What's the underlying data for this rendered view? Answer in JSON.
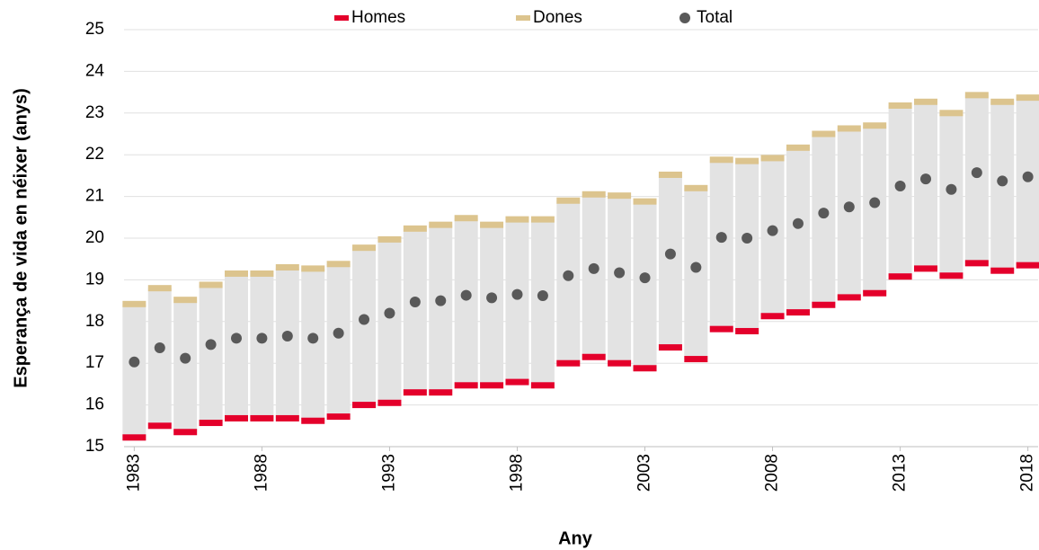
{
  "chart_data": {
    "type": "range",
    "x_label": "Any",
    "y_label": "Esperança de vida en néixer (anys)",
    "x": [
      1983,
      1984,
      1985,
      1986,
      1987,
      1988,
      1989,
      1990,
      1991,
      1992,
      1993,
      1994,
      1995,
      1996,
      1997,
      1998,
      1999,
      2000,
      2001,
      2002,
      2003,
      2004,
      2005,
      2006,
      2007,
      2008,
      2009,
      2010,
      2011,
      2012,
      2013,
      2014,
      2015,
      2016,
      2017,
      2018
    ],
    "series": [
      {
        "name": "Homes",
        "color": "#e4002b",
        "marker": "dash",
        "values": [
          15.22,
          15.5,
          15.35,
          15.57,
          15.68,
          15.68,
          15.68,
          15.62,
          15.72,
          16.0,
          16.05,
          16.3,
          16.3,
          16.47,
          16.47,
          16.55,
          16.47,
          17.0,
          17.15,
          17.0,
          16.88,
          17.38,
          17.1,
          17.82,
          17.77,
          18.13,
          18.22,
          18.4,
          18.58,
          18.68,
          19.08,
          19.27,
          19.1,
          19.4,
          19.22,
          19.35
        ]
      },
      {
        "name": "Dones",
        "color": "#dcc48e",
        "marker": "dash",
        "values": [
          18.42,
          18.8,
          18.52,
          18.88,
          19.15,
          19.15,
          19.3,
          19.27,
          19.38,
          19.77,
          19.97,
          20.23,
          20.32,
          20.48,
          20.32,
          20.45,
          20.45,
          20.9,
          21.05,
          21.02,
          20.88,
          21.52,
          21.2,
          21.88,
          21.85,
          21.92,
          22.17,
          22.5,
          22.63,
          22.7,
          23.18,
          23.27,
          23.0,
          23.43,
          23.27,
          23.37
        ]
      },
      {
        "name": "Total",
        "color": "#595959",
        "marker": "dot",
        "values": [
          17.03,
          17.37,
          17.12,
          17.45,
          17.6,
          17.6,
          17.65,
          17.6,
          17.72,
          18.05,
          18.2,
          18.47,
          18.5,
          18.63,
          18.57,
          18.65,
          18.62,
          19.1,
          19.27,
          19.17,
          19.05,
          19.62,
          19.3,
          20.02,
          20.0,
          20.18,
          20.35,
          20.6,
          20.75,
          20.85,
          21.25,
          21.42,
          21.17,
          21.57,
          21.37,
          21.47
        ]
      }
    ],
    "range_color": "#e3e3e3",
    "xlim": [
      1982.6,
      2018.4
    ],
    "xticks": [
      1983,
      1988,
      1993,
      1998,
      2003,
      2008,
      2013,
      2018
    ],
    "ylim": [
      15,
      25
    ],
    "yticks": [
      15,
      16,
      17,
      18,
      19,
      20,
      21,
      22,
      23,
      24,
      25
    ],
    "grid": true,
    "legend": "top"
  }
}
